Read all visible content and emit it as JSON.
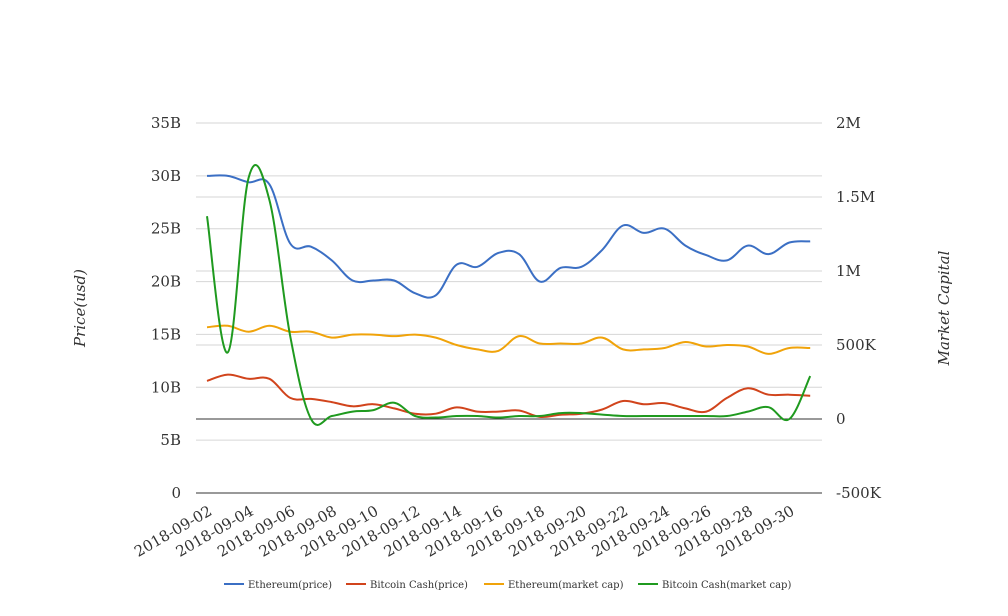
{
  "chart_data": {
    "type": "line",
    "title": "",
    "x": [
      "2018-09-02",
      "2018-09-03",
      "2018-09-04",
      "2018-09-05",
      "2018-09-06",
      "2018-09-07",
      "2018-09-08",
      "2018-09-09",
      "2018-09-10",
      "2018-09-11",
      "2018-09-12",
      "2018-09-13",
      "2018-09-14",
      "2018-09-15",
      "2018-09-16",
      "2018-09-17",
      "2018-09-18",
      "2018-09-19",
      "2018-09-20",
      "2018-09-21",
      "2018-09-22",
      "2018-09-23",
      "2018-09-24",
      "2018-09-25",
      "2018-09-26",
      "2018-09-27",
      "2018-09-28",
      "2018-09-29",
      "2018-09-30",
      "2018-10-01"
    ],
    "x_tick_labels": [
      "2018-09-02",
      "2018-09-04",
      "2018-09-06",
      "2018-09-08",
      "2018-09-10",
      "2018-09-12",
      "2018-09-14",
      "2018-09-16",
      "2018-09-18",
      "2018-09-20",
      "2018-09-22",
      "2018-09-24",
      "2018-09-26",
      "2018-09-28",
      "2018-09-30"
    ],
    "y_left": {
      "label": "Price(usd)",
      "min": 0,
      "max": 35000000000,
      "ticks": [
        0,
        5000000000,
        10000000000,
        15000000000,
        20000000000,
        25000000000,
        30000000000,
        35000000000
      ],
      "tick_labels": [
        "0",
        "5B",
        "10B",
        "15B",
        "20B",
        "25B",
        "30B",
        "35B"
      ]
    },
    "y_right": {
      "label": "Market Capital",
      "min": -500000,
      "max": 2000000,
      "ticks": [
        -500000,
        0,
        500000,
        1000000,
        1500000,
        2000000
      ],
      "tick_labels": [
        "-500K",
        "0",
        "500K",
        "1M",
        "1.5M",
        "2M"
      ]
    },
    "grid": true,
    "legend_position": "bottom",
    "series": [
      {
        "name": "Ethereum(price)",
        "axis": "left",
        "color": "#3b6fc4",
        "values": [
          30000000000,
          30000000000,
          29400000000,
          29200000000,
          23600000000,
          23300000000,
          22000000000,
          20100000000,
          20100000000,
          20100000000,
          18900000000,
          18700000000,
          21600000000,
          21400000000,
          22700000000,
          22600000000,
          20000000000,
          21300000000,
          21400000000,
          23000000000,
          25300000000,
          24600000000,
          25000000000,
          23400000000,
          22500000000,
          22000000000,
          23400000000,
          22600000000,
          23700000000,
          23800000000
        ]
      },
      {
        "name": "Bitcoin Cash(price)",
        "axis": "left",
        "color": "#d1441c",
        "values": [
          10600000000,
          11200000000,
          10800000000,
          10800000000,
          9000000000,
          8900000000,
          8600000000,
          8200000000,
          8400000000,
          8000000000,
          7500000000,
          7500000000,
          8100000000,
          7700000000,
          7700000000,
          7800000000,
          7200000000,
          7400000000,
          7500000000,
          7900000000,
          8700000000,
          8400000000,
          8500000000,
          8000000000,
          7700000000,
          9000000000,
          9900000000,
          9300000000,
          9300000000,
          9200000000
        ]
      },
      {
        "name": "Ethereum(market cap)",
        "axis": "right",
        "color": "#f0a30a",
        "values": [
          620000,
          630000,
          590000,
          630000,
          590000,
          590000,
          550000,
          570000,
          570000,
          560000,
          570000,
          550000,
          500000,
          470000,
          460000,
          560000,
          510000,
          510000,
          510000,
          550000,
          470000,
          470000,
          480000,
          520000,
          490000,
          500000,
          490000,
          440000,
          480000,
          480000
        ]
      },
      {
        "name": "Bitcoin Cash(market cap)",
        "axis": "right",
        "color": "#1f9a1f",
        "values": [
          1370000,
          450000,
          1630000,
          1480000,
          560000,
          0,
          20000,
          50000,
          60000,
          110000,
          20000,
          10000,
          20000,
          20000,
          10000,
          20000,
          20000,
          40000,
          40000,
          30000,
          20000,
          20000,
          20000,
          20000,
          20000,
          20000,
          50000,
          80000,
          0,
          290000
        ]
      }
    ]
  }
}
